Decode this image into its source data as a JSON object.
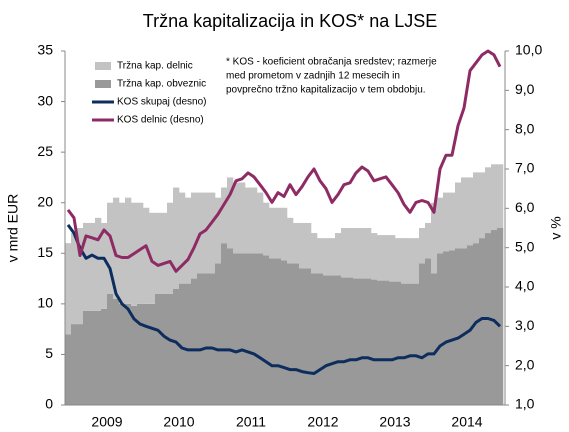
{
  "chart_data": {
    "type": "bar-line",
    "title": "Tržna kapitalizacija in KOS* na LJSE",
    "y_label": "v mrd EUR",
    "y2_label": "v %",
    "annotation": [
      "* KOS - koeficient obračanja sredstev; razmerje",
      "med prometom v zadnjih 12 mesecih in",
      "povprečno tržno kapitalizacijo  v tem obdobju."
    ],
    "categories": [
      null,
      null,
      null,
      null,
      null,
      null,
      null,
      "2009",
      null,
      null,
      null,
      null,
      null,
      null,
      null,
      null,
      null,
      null,
      null,
      "2010",
      null,
      null,
      null,
      null,
      null,
      null,
      null,
      null,
      null,
      null,
      null,
      "2011",
      null,
      null,
      null,
      null,
      null,
      null,
      null,
      null,
      null,
      null,
      null,
      "2012",
      null,
      null,
      null,
      null,
      null,
      null,
      null,
      null,
      null,
      null,
      null,
      "2013",
      null,
      null,
      null,
      null,
      null,
      null,
      null,
      null,
      null,
      null,
      null,
      "2014",
      null,
      null,
      null,
      null,
      null
    ],
    "ylim": [
      0,
      35
    ],
    "yticks": [
      0,
      5,
      10,
      15,
      20,
      25,
      30,
      35
    ],
    "y2lim": [
      1,
      10
    ],
    "y2ticks": [
      {
        "value": 1,
        "label": "1,0"
      },
      {
        "value": 2,
        "label": "2,0"
      },
      {
        "value": 3,
        "label": "3,0"
      },
      {
        "value": 4,
        "label": "4,0"
      },
      {
        "value": 5,
        "label": "5,0"
      },
      {
        "value": 6,
        "label": "6,0"
      },
      {
        "value": 7,
        "label": "7,0"
      },
      {
        "value": 8,
        "label": "8,0"
      },
      {
        "value": 9,
        "label": "9,0"
      },
      {
        "value": 10,
        "label": "10,0"
      }
    ],
    "series": [
      {
        "name": "Tržna kap. delnic",
        "kind": "bar",
        "color": "#c3c3c3",
        "values": [
          9,
          9,
          9.5,
          8.7,
          8.7,
          9.2,
          8.5,
          9,
          10,
          10,
          10.5,
          10.2,
          10,
          9.5,
          9,
          8,
          8,
          9,
          10,
          9,
          8.5,
          8.5,
          8,
          8,
          8,
          6.5,
          5.5,
          7,
          7,
          7,
          6.5,
          6.5,
          6,
          5.2,
          5,
          5,
          5.2,
          4.5,
          4,
          4.5,
          4.5,
          4,
          3.5,
          3.7,
          3.7,
          4.2,
          4.9,
          4.9,
          5,
          5,
          5,
          4.6,
          4.5,
          4.5,
          4.6,
          4.3,
          4.5,
          4.5,
          4.5,
          3.5,
          3.5,
          7,
          5.5,
          5.8,
          5.7,
          6.5,
          7,
          6.7,
          7,
          6.5,
          6.5,
          6.5,
          6.3
        ]
      },
      {
        "name": "Tržna kap. obveznic",
        "kind": "bar",
        "color": "#999999",
        "values": [
          7,
          8,
          8,
          9.3,
          9.3,
          9.3,
          9.5,
          11,
          10.5,
          10,
          10,
          9.8,
          10,
          10,
          10,
          11,
          11,
          11,
          11.5,
          12,
          12,
          12.5,
          13,
          13,
          13,
          14,
          16,
          15.5,
          15,
          15,
          15,
          15,
          15,
          14.8,
          14.5,
          14.5,
          14.3,
          14,
          14,
          13.5,
          13.5,
          13,
          13,
          12.8,
          12.8,
          12.8,
          12.6,
          12.6,
          12.5,
          12.5,
          12.5,
          12.4,
          12.3,
          12.3,
          12.2,
          12.2,
          12,
          12,
          12,
          14,
          14.5,
          13,
          15,
          15.2,
          15.3,
          15.5,
          15.5,
          15.8,
          16,
          16.5,
          17,
          17.3,
          17.5
        ]
      },
      {
        "name": "KOS skupaj (desno)",
        "kind": "line",
        "axis": "y2",
        "color": "#0c2d5e",
        "values": [
          5.58,
          5.37,
          4.99,
          4.73,
          4.81,
          4.73,
          4.73,
          4.47,
          3.83,
          3.57,
          3.44,
          3.19,
          3.06,
          3.0,
          2.95,
          2.9,
          2.75,
          2.65,
          2.6,
          2.45,
          2.4,
          2.4,
          2.4,
          2.45,
          2.45,
          2.4,
          2.4,
          2.4,
          2.35,
          2.4,
          2.35,
          2.3,
          2.2,
          2.1,
          2.0,
          2.0,
          1.95,
          1.9,
          1.9,
          1.85,
          1.82,
          1.8,
          1.9,
          2.0,
          2.05,
          2.1,
          2.1,
          2.15,
          2.15,
          2.2,
          2.2,
          2.15,
          2.15,
          2.15,
          2.15,
          2.2,
          2.2,
          2.25,
          2.25,
          2.2,
          2.3,
          2.3,
          2.5,
          2.6,
          2.65,
          2.7,
          2.8,
          2.9,
          3.1,
          3.2,
          3.2,
          3.15,
          3.0
        ]
      },
      {
        "name": "KOS delnic (desno)",
        "kind": "line",
        "axis": "y2",
        "color": "#8e2b64",
        "values": [
          5.96,
          5.76,
          4.8,
          5.3,
          5.25,
          5.2,
          5.45,
          5.3,
          4.8,
          4.75,
          4.75,
          4.85,
          4.95,
          5.05,
          4.65,
          4.55,
          4.6,
          4.65,
          4.4,
          4.55,
          4.7,
          5.0,
          5.35,
          5.45,
          5.65,
          5.85,
          6.1,
          6.35,
          6.7,
          6.75,
          6.9,
          6.8,
          6.6,
          6.4,
          6.15,
          6.4,
          6.3,
          6.6,
          6.35,
          6.55,
          6.8,
          7.0,
          6.7,
          6.5,
          6.15,
          6.35,
          6.6,
          6.65,
          6.9,
          7.05,
          6.95,
          6.7,
          6.75,
          6.8,
          6.6,
          6.4,
          6.1,
          5.9,
          6.15,
          6.2,
          6.15,
          5.9,
          7.0,
          7.35,
          7.35,
          8.1,
          8.55,
          9.5,
          9.7,
          9.9,
          10.0,
          9.9,
          9.6
        ]
      }
    ]
  }
}
